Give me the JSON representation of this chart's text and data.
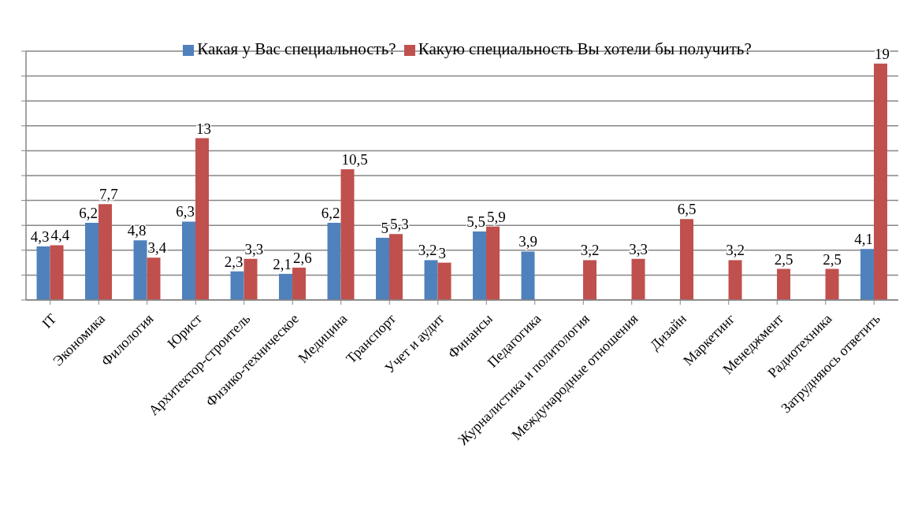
{
  "chart_data": {
    "type": "bar",
    "categories": [
      "IT",
      "Экономика",
      "Филология",
      "Юрист",
      "Архитектор-строитель",
      "Физико-техническое",
      "Медицина",
      "Транспорт",
      "Учет и аудит",
      "Финансы",
      "Педагогика",
      "Журналистика и политология",
      "Международные отношения",
      "Дизайн",
      "Маркетинг",
      "Менеджмент",
      "Радиотехника",
      "Затрудняюсь ответить"
    ],
    "series": [
      {
        "name": "Какая у Вас специальность?",
        "color": "#4f81bd",
        "values": [
          4.3,
          6.2,
          4.8,
          6.3,
          2.3,
          2.1,
          6.2,
          5,
          3.2,
          5.5,
          3.9,
          null,
          null,
          null,
          null,
          null,
          null,
          4.1
        ],
        "value_labels": [
          "4,3",
          "6,2",
          "4,8",
          "6,3",
          "2,3",
          "2,1",
          "6,2",
          "5",
          "3,2",
          "5,5",
          "3,9",
          null,
          null,
          null,
          null,
          null,
          null,
          "4,1"
        ]
      },
      {
        "name": "Какую специальность Вы хотели бы получить?",
        "color": "#c0504d",
        "values": [
          4.4,
          7.7,
          3.4,
          13,
          3.3,
          2.6,
          10.5,
          5.3,
          3,
          5.9,
          null,
          3.2,
          3.3,
          6.5,
          3.2,
          2.5,
          2.5,
          19
        ],
        "value_labels": [
          "4,4",
          "7,7",
          "3,4",
          "13",
          "3,3",
          "2,6",
          "10,5",
          "5,3",
          "3",
          "5,9",
          null,
          "3,2",
          "3,3",
          "6,5",
          "3,2",
          "2,5",
          "2,5",
          "19"
        ]
      }
    ],
    "ylim": [
      0,
      20
    ],
    "yticks": [
      {
        "value": 0,
        "label": null
      },
      {
        "value": 2,
        "label": null
      },
      {
        "value": 4,
        "label": null
      },
      {
        "value": 6,
        "label": null
      },
      {
        "value": 8,
        "label": null
      },
      {
        "value": 10,
        "label": null
      },
      {
        "value": 12,
        "label": null
      },
      {
        "value": 14,
        "label": null
      },
      {
        "value": 16,
        "label": null
      },
      {
        "value": 18,
        "label": null
      },
      {
        "value": 20,
        "label": null
      }
    ],
    "tick_labels": "x",
    "grid": "y",
    "legend": "top"
  }
}
